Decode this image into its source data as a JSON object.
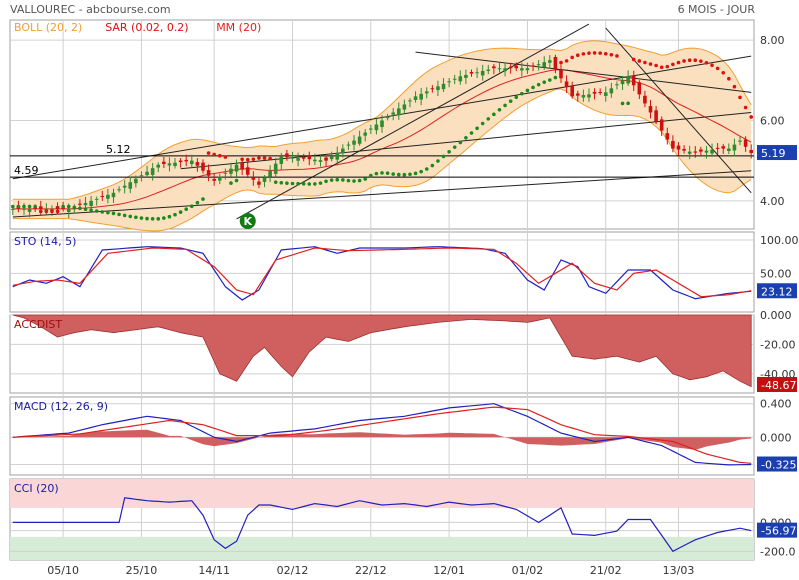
{
  "header": {
    "title": "VALLOUREC - abcbourse.com",
    "period": "6 MOIS - JOUR"
  },
  "colors": {
    "up": "#2e8b2e",
    "down": "#d01010",
    "boll": "#f0a030",
    "boll_fill": "#fbe0c0",
    "sar_up": "#1a8a1a",
    "sar_down": "#e01010",
    "mm": "#e02020",
    "sto_k": "#2020c0",
    "sto_d": "#e02020",
    "accdist": "#d06060",
    "macd": "#2020c0",
    "signal": "#e02020",
    "hist": "#d06060",
    "cci": "#2020c0",
    "cci_overbought": "#fbd6d6",
    "cci_oversold": "#d6ecd6",
    "grid": "#d0d0d0",
    "badge": "#1c3fb0",
    "badge_neg": "#c01010"
  },
  "x_ticks": [
    "05/10",
    "25/10",
    "14/11",
    "02/12",
    "22/12",
    "12/01",
    "01/02",
    "21/02",
    "13/03"
  ],
  "chart_data": [
    {
      "type": "candlestick",
      "panel": "price",
      "ylim": [
        3.3,
        8.5
      ],
      "yticks": [
        "8.00",
        "6.00",
        "4.00"
      ],
      "ytick_values": [
        8,
        6,
        4
      ],
      "last_value": "5.19",
      "legend": [
        {
          "label": "BOLL (20, 2)",
          "color": "#f0a030"
        },
        {
          "label": "SAR (0.02, 0.2)",
          "color": "#e01010"
        },
        {
          "label": "MM (20)",
          "color": "#e02020"
        }
      ],
      "close_anchors": [
        [
          0,
          3.8
        ],
        [
          10,
          3.8
        ],
        [
          18,
          4.2
        ],
        [
          26,
          4.9
        ],
        [
          32,
          5.0
        ],
        [
          36,
          4.5
        ],
        [
          40,
          4.9
        ],
        [
          44,
          4.4
        ],
        [
          48,
          5.1
        ],
        [
          56,
          5.0
        ],
        [
          64,
          5.8
        ],
        [
          72,
          6.6
        ],
        [
          80,
          7.1
        ],
        [
          86,
          7.3
        ],
        [
          92,
          7.3
        ],
        [
          96,
          7.5
        ],
        [
          100,
          6.6
        ],
        [
          106,
          6.7
        ],
        [
          110,
          7.1
        ],
        [
          118,
          5.3
        ],
        [
          122,
          5.2
        ],
        [
          126,
          5.3
        ],
        [
          128,
          5.3
        ],
        [
          130,
          5.5
        ],
        [
          132,
          5.19
        ]
      ],
      "levels": [
        {
          "value": 5.12,
          "label": "5.12"
        },
        {
          "value": 4.59,
          "label": "4.59"
        }
      ],
      "signal_marker": {
        "label": "K",
        "index": 42
      }
    },
    {
      "type": "line",
      "panel": "sto",
      "title": "STO (14, 5)",
      "ylim": [
        -8,
        112
      ],
      "yticks": [
        "100.00",
        "50.00"
      ],
      "ytick_values": [
        100,
        50
      ],
      "last_value": "23.12",
      "series": [
        {
          "role": "k",
          "anchors": [
            [
              0,
              30
            ],
            [
              3,
              40
            ],
            [
              6,
              35
            ],
            [
              9,
              45
            ],
            [
              12,
              30
            ],
            [
              16,
              85
            ],
            [
              24,
              90
            ],
            [
              30,
              88
            ],
            [
              34,
              80
            ],
            [
              38,
              30
            ],
            [
              41,
              10
            ],
            [
              44,
              25
            ],
            [
              48,
              85
            ],
            [
              54,
              90
            ],
            [
              58,
              80
            ],
            [
              62,
              88
            ],
            [
              70,
              88
            ],
            [
              76,
              90
            ],
            [
              84,
              87
            ],
            [
              88,
              80
            ],
            [
              92,
              40
            ],
            [
              95,
              25
            ],
            [
              98,
              70
            ],
            [
              101,
              60
            ],
            [
              103,
              30
            ],
            [
              106,
              20
            ],
            [
              110,
              55
            ],
            [
              114,
              55
            ],
            [
              118,
              25
            ],
            [
              122,
              12
            ],
            [
              128,
              20
            ],
            [
              132,
              23
            ]
          ]
        },
        {
          "role": "d",
          "anchors": [
            [
              0,
              32
            ],
            [
              4,
              38
            ],
            [
              8,
              40
            ],
            [
              12,
              35
            ],
            [
              17,
              80
            ],
            [
              25,
              88
            ],
            [
              31,
              86
            ],
            [
              36,
              60
            ],
            [
              40,
              25
            ],
            [
              43,
              18
            ],
            [
              47,
              70
            ],
            [
              54,
              88
            ],
            [
              60,
              84
            ],
            [
              70,
              86
            ],
            [
              78,
              88
            ],
            [
              86,
              86
            ],
            [
              90,
              65
            ],
            [
              94,
              35
            ],
            [
              97,
              50
            ],
            [
              100,
              65
            ],
            [
              104,
              35
            ],
            [
              108,
              25
            ],
            [
              111,
              50
            ],
            [
              115,
              55
            ],
            [
              119,
              35
            ],
            [
              123,
              15
            ],
            [
              128,
              18
            ],
            [
              132,
              24
            ]
          ]
        }
      ]
    },
    {
      "type": "area",
      "panel": "accdist",
      "title": "ACCDIST",
      "ylim": [
        -53,
        0
      ],
      "yticks": [
        "0.000",
        "-20.00",
        "-40.00"
      ],
      "ytick_values": [
        0,
        -20,
        -40
      ],
      "last_value": "-48.67",
      "anchors": [
        [
          0,
          0
        ],
        [
          2,
          -2
        ],
        [
          5,
          -8
        ],
        [
          8,
          -15
        ],
        [
          11,
          -12
        ],
        [
          14,
          -10
        ],
        [
          18,
          -12
        ],
        [
          22,
          -10
        ],
        [
          26,
          -8
        ],
        [
          30,
          -12
        ],
        [
          34,
          -15
        ],
        [
          37,
          -40
        ],
        [
          40,
          -45
        ],
        [
          43,
          -28
        ],
        [
          45,
          -22
        ],
        [
          48,
          -35
        ],
        [
          50,
          -42
        ],
        [
          53,
          -25
        ],
        [
          56,
          -15
        ],
        [
          60,
          -18
        ],
        [
          64,
          -12
        ],
        [
          70,
          -8
        ],
        [
          76,
          -5
        ],
        [
          82,
          -3
        ],
        [
          88,
          -4
        ],
        [
          92,
          -5
        ],
        [
          96,
          -2
        ],
        [
          100,
          -28
        ],
        [
          104,
          -30
        ],
        [
          108,
          -28
        ],
        [
          112,
          -32
        ],
        [
          115,
          -28
        ],
        [
          118,
          -40
        ],
        [
          121,
          -44
        ],
        [
          124,
          -42
        ],
        [
          127,
          -38
        ],
        [
          130,
          -45
        ],
        [
          132,
          -48.67
        ]
      ]
    },
    {
      "type": "line",
      "panel": "macd",
      "title": "MACD (12, 26, 9)",
      "ylim": [
        -0.45,
        0.48
      ],
      "yticks": [
        "0.400",
        "0.000",
        "-0.325"
      ],
      "ytick_values": [
        0.4,
        0,
        -0.325
      ],
      "last_value": "-0.325",
      "series": [
        {
          "role": "macd",
          "anchors": [
            [
              0,
              0.0
            ],
            [
              10,
              0.05
            ],
            [
              16,
              0.15
            ],
            [
              24,
              0.25
            ],
            [
              30,
              0.2
            ],
            [
              36,
              0.0
            ],
            [
              40,
              -0.05
            ],
            [
              46,
              0.05
            ],
            [
              54,
              0.1
            ],
            [
              62,
              0.2
            ],
            [
              70,
              0.25
            ],
            [
              78,
              0.35
            ],
            [
              86,
              0.4
            ],
            [
              92,
              0.25
            ],
            [
              98,
              0.05
            ],
            [
              104,
              -0.05
            ],
            [
              110,
              0.0
            ],
            [
              116,
              -0.1
            ],
            [
              122,
              -0.3
            ],
            [
              128,
              -0.33
            ],
            [
              132,
              -0.325
            ]
          ]
        },
        {
          "role": "signal",
          "anchors": [
            [
              0,
              0.0
            ],
            [
              12,
              0.04
            ],
            [
              20,
              0.12
            ],
            [
              28,
              0.2
            ],
            [
              34,
              0.15
            ],
            [
              40,
              0.02
            ],
            [
              48,
              0.02
            ],
            [
              56,
              0.08
            ],
            [
              66,
              0.18
            ],
            [
              76,
              0.28
            ],
            [
              86,
              0.36
            ],
            [
              92,
              0.33
            ],
            [
              98,
              0.15
            ],
            [
              104,
              0.03
            ],
            [
              110,
              0.01
            ],
            [
              118,
              -0.05
            ],
            [
              124,
              -0.2
            ],
            [
              130,
              -0.3
            ],
            [
              132,
              -0.31
            ]
          ]
        }
      ]
    },
    {
      "type": "line",
      "panel": "cci",
      "title": "CCI (20)",
      "ylim": [
        -260,
        300
      ],
      "yticks": [
        "0.000",
        "-56.97",
        "-200.0"
      ],
      "ytick_values": [
        0,
        -56.97,
        -200
      ],
      "last_value": "-56.97",
      "bands": [
        100,
        -100
      ],
      "anchors": [
        [
          0,
          0
        ],
        [
          10,
          0
        ],
        [
          19,
          0
        ],
        [
          20,
          170
        ],
        [
          24,
          150
        ],
        [
          28,
          140
        ],
        [
          32,
          150
        ],
        [
          34,
          50
        ],
        [
          36,
          -120
        ],
        [
          38,
          -180
        ],
        [
          40,
          -130
        ],
        [
          42,
          50
        ],
        [
          44,
          120
        ],
        [
          46,
          120
        ],
        [
          50,
          90
        ],
        [
          54,
          130
        ],
        [
          58,
          110
        ],
        [
          62,
          150
        ],
        [
          66,
          120
        ],
        [
          70,
          130
        ],
        [
          74,
          110
        ],
        [
          78,
          140
        ],
        [
          82,
          120
        ],
        [
          86,
          130
        ],
        [
          90,
          90
        ],
        [
          94,
          0
        ],
        [
          98,
          100
        ],
        [
          100,
          -80
        ],
        [
          104,
          -90
        ],
        [
          108,
          -60
        ],
        [
          110,
          20
        ],
        [
          114,
          20
        ],
        [
          118,
          -200
        ],
        [
          122,
          -120
        ],
        [
          126,
          -70
        ],
        [
          130,
          -40
        ],
        [
          132,
          -57
        ]
      ]
    }
  ]
}
